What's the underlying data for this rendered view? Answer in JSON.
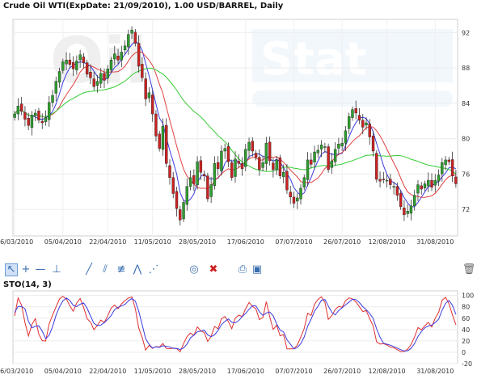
{
  "header": {
    "title": "Crude Oil WTI(ExpDate: 21/09/2010), 1.00 USD/BARREL, Daily"
  },
  "watermark": {
    "left": "Oil",
    "right": "Stat"
  },
  "colors": {
    "up": "#2e9e2e",
    "down": "#cc2222",
    "ma_fast": "#3b3be0",
    "ma_mid": "#e04040",
    "ma_slow": "#33cc33",
    "sto_k": "#e03030",
    "sto_d": "#3b3be0"
  },
  "toolbar": {
    "tools": [
      {
        "name": "pointer-tool-icon",
        "glyph": "↖"
      },
      {
        "name": "crosshair-tool-icon",
        "glyph": "+"
      },
      {
        "name": "horizontal-line-tool-icon",
        "glyph": "—"
      },
      {
        "name": "vertical-line-tool-icon",
        "glyph": "⊥"
      },
      {
        "name": "trend-line-tool-icon",
        "glyph": "╱"
      },
      {
        "name": "parallel-lines-tool-icon",
        "glyph": "⫽"
      },
      {
        "name": "fibonacci-tool-icon",
        "glyph": "≢"
      },
      {
        "name": "zigzag-tool-icon",
        "glyph": "⋀"
      },
      {
        "name": "fan-tool-icon",
        "glyph": "⋰"
      },
      {
        "name": "comment-tool-icon",
        "glyph": "◎"
      },
      {
        "name": "delete-tool-icon",
        "glyph": "✖"
      },
      {
        "name": "print-icon",
        "glyph": "⎙"
      },
      {
        "name": "save-icon",
        "glyph": "▣"
      },
      {
        "name": "trash-icon",
        "glyph": "🗑"
      }
    ]
  },
  "chart_data": [
    {
      "type": "candlestick",
      "title": "Crude Oil WTI(ExpDate: 21/09/2010), 1.00 USD/BARREL, Daily",
      "x_tick_labels": [
        "16/03/2010",
        "05/04/2010",
        "22/04/2010",
        "11/05/2010",
        "28/05/2010",
        "17/06/2010",
        "07/07/2010",
        "26/07/2010",
        "12/08/2010",
        "31/08/2010"
      ],
      "x_tick_index": [
        0,
        14,
        27,
        40,
        53,
        67,
        81,
        95,
        108,
        122
      ],
      "y_ticks": [
        72,
        76,
        80,
        84,
        88,
        92
      ],
      "ylim": [
        69,
        93.5
      ],
      "overlays": [
        "fast moving average (blue)",
        "medium moving average (red)",
        "slow moving average (green)"
      ],
      "closes": [
        82.8,
        83.7,
        83.1,
        82.2,
        81.5,
        82.6,
        82.9,
        82.1,
        81.8,
        82.4,
        84.1,
        84.9,
        86.5,
        87.6,
        88.7,
        88.9,
        88.4,
        87.9,
        88.8,
        89.5,
        88.6,
        87.3,
        86.9,
        85.9,
        86.5,
        87.4,
        86.6,
        87.9,
        88.9,
        89.6,
        88.9,
        89.8,
        90.5,
        91.8,
        92.3,
        90.8,
        88.2,
        86.9,
        84.5,
        85.2,
        82.8,
        80.3,
        78.9,
        81.4,
        77.2,
        75.6,
        73.8,
        72.1,
        70.8,
        72.8,
        74.6,
        75.6,
        74.9,
        77.4,
        76.2,
        75.8,
        73.2,
        74.8,
        77.2,
        76.6,
        78.6,
        78.9,
        77.4,
        75.6,
        77.7,
        77.2,
        76.6,
        78.8,
        79.6,
        78.6,
        77.9,
        76.5,
        77.3,
        79.5,
        77.5,
        76.5,
        77.6,
        75.8,
        76.2,
        74.2,
        73.4,
        72.7,
        73.3,
        74.4,
        75.6,
        77.6,
        77.1,
        78.5,
        78.7,
        79.3,
        79.1,
        76.5,
        77.5,
        78.8,
        79.4,
        79.5,
        80.9,
        82.5,
        83.3,
        82.9,
        82.1,
        81.3,
        81.8,
        80.2,
        78.6,
        75.4,
        75.2,
        75.4,
        75.3,
        74.8,
        74.6,
        73.6,
        72.3,
        71.4,
        71.8,
        72.4,
        73.6,
        74.8,
        74.3,
        74.9,
        75.3,
        74.5,
        75.3,
        75.9,
        77.3,
        77.6,
        77.4,
        75.8,
        74.9
      ],
      "stochastic": {
        "title": "STO(14, 3)",
        "y_ticks": [
          -20,
          0,
          20,
          40,
          60,
          80,
          100
        ],
        "ylim": [
          -20,
          108
        ],
        "series": [
          {
            "name": "%K",
            "values": [
              63.7,
              95.6,
              82.8,
              51.8,
              28.6,
              48.6,
              59.4,
              31.7,
              20.4,
              19.7,
              49.9,
              65.3,
              79.9,
              93.8,
              98.5,
              93.6,
              82.0,
              72.2,
              86.6,
              94.6,
              79.2,
              59.2,
              53.3,
              39.8,
              47.4,
              56.6,
              52.2,
              64.2,
              77.7,
              83.0,
              76.7,
              85.1,
              91.0,
              95.5,
              97.4,
              76.7,
              42.5,
              26.0,
              3.8,
              12.0,
              6.8,
              10.0,
              9.1,
              15.3,
              6.8,
              6.1,
              7.4,
              6.4,
              0.8,
              15.1,
              27.3,
              33.8,
              29.5,
              44.6,
              37.5,
              34.9,
              18.9,
              28.1,
              45.4,
              41.3,
              58.9,
              62.8,
              54.0,
              41.4,
              60.0,
              65.4,
              62.8,
              76.6,
              87.8,
              80.9,
              76.2,
              57.5,
              60.9,
              89.1,
              62.6,
              40.2,
              47.5,
              28.9,
              31.2,
              5.9,
              5.9,
              6.1,
              12.4,
              26.7,
              41.9,
              68.4,
              64.8,
              84.6,
              92.9,
              97.6,
              88.0,
              57.9,
              64.4,
              75.1,
              80.7,
              79.0,
              90.7,
              95.6,
              93.9,
              88.6,
              80.1,
              71.7,
              73.3,
              59.1,
              46.4,
              18.3,
              14.4,
              15.2,
              12.8,
              9.2,
              8.0,
              4.6,
              1.0,
              1.4,
              5.3,
              13.5,
              26.6,
              43.4,
              39.6,
              46.7,
              52.5,
              44.4,
              60.0,
              70.3,
              91.4,
              96.7,
              85.5,
              65.9,
              48.5
            ]
          },
          {
            "name": "%D",
            "values": [
              70.1,
              80.4,
              80.7,
              76.7,
              54.4,
              43.0,
              45.5,
              46.6,
              37.2,
              23.9,
              30.0,
              45.0,
              65.0,
              79.7,
              90.7,
              95.3,
              91.4,
              82.6,
              80.3,
              84.5,
              86.8,
              77.7,
              63.9,
              50.8,
              46.8,
              47.9,
              52.1,
              57.7,
              64.7,
              75.0,
              79.1,
              81.6,
              84.3,
              90.5,
              94.6,
              89.9,
              72.2,
              48.4,
              24.1,
              13.9,
              7.5,
              9.6,
              8.6,
              11.5,
              10.4,
              9.4,
              6.8,
              6.6,
              4.9,
              7.4,
              14.4,
              25.4,
              30.2,
              36.0,
              37.2,
              39.0,
              30.4,
              27.3,
              30.8,
              38.3,
              48.5,
              54.3,
              58.6,
              52.7,
              51.8,
              55.6,
              62.7,
              68.3,
              75.7,
              81.8,
              81.6,
              71.5,
              64.9,
              69.2,
              70.9,
              64.0,
              50.1,
              38.9,
              35.9,
              22.0,
              14.3,
              6.0,
              8.1,
              15.1,
              27.0,
              45.7,
              58.4,
              72.6,
              80.8,
              91.7,
              92.8,
              81.2,
              70.1,
              65.8,
              73.4,
              78.3,
              83.5,
              88.4,
              93.4,
              92.7,
              87.5,
              80.1,
              75.0,
              68.0,
              59.6,
              41.3,
              26.4,
              16.0,
              14.1,
              12.4,
              10.0,
              7.3,
              4.5,
              2.3,
              2.6,
              6.7,
              15.1,
              27.8,
              36.5,
              43.2,
              46.3,
              47.9,
              52.3,
              58.2,
              73.9,
              86.1,
              91.2,
              82.7,
              66.6
            ]
          }
        ]
      }
    }
  ]
}
